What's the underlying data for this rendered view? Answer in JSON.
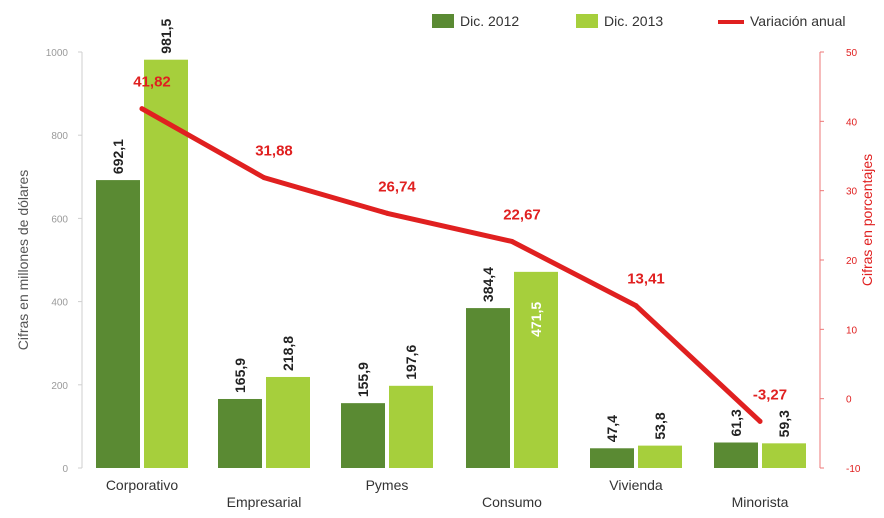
{
  "chart_data": {
    "type": "bar",
    "title": "",
    "categories": [
      "Corporativo",
      "Empresarial",
      "Pymes",
      "Consumo",
      "Vivienda",
      "Minorista"
    ],
    "series": [
      {
        "name": "Dic. 2012",
        "color": "#5a8a33",
        "values": [
          692.1,
          165.9,
          155.9,
          384.4,
          47.4,
          61.3
        ],
        "labels": [
          "692,1",
          "165,9",
          "155,9",
          "384,4",
          "47,4",
          "61,3"
        ]
      },
      {
        "name": "Dic. 2013",
        "color": "#a6cf3c",
        "values": [
          981.5,
          218.8,
          197.6,
          471.5,
          53.8,
          59.3
        ],
        "labels": [
          "981,5",
          "218,8",
          "197,6",
          "471,5",
          "53,8",
          "59,3"
        ]
      }
    ],
    "line_series": {
      "name": "Variación anual",
      "color": "#e02020",
      "values": [
        41.82,
        31.88,
        26.74,
        22.67,
        13.41,
        -3.27
      ],
      "labels": [
        "41,82",
        "31,88",
        "26,74",
        "22,67",
        "13,41",
        "-3,27"
      ]
    },
    "y_left": {
      "label": "Cifras en millones de dólares",
      "range": [
        0,
        1000
      ],
      "ticks": [
        0,
        200,
        400,
        600,
        800,
        1000
      ],
      "tick_labels": [
        "0",
        "200",
        "400",
        "600",
        "800",
        "1000"
      ]
    },
    "y_right": {
      "label": "Cifras en porcentajes",
      "range": [
        -10,
        50
      ],
      "ticks": [
        -10,
        0,
        10,
        20,
        30,
        40,
        50
      ],
      "tick_labels": [
        "-10",
        "0",
        "10",
        "20",
        "30",
        "40",
        "50"
      ]
    },
    "legend_position": "top-right",
    "grid": false
  }
}
